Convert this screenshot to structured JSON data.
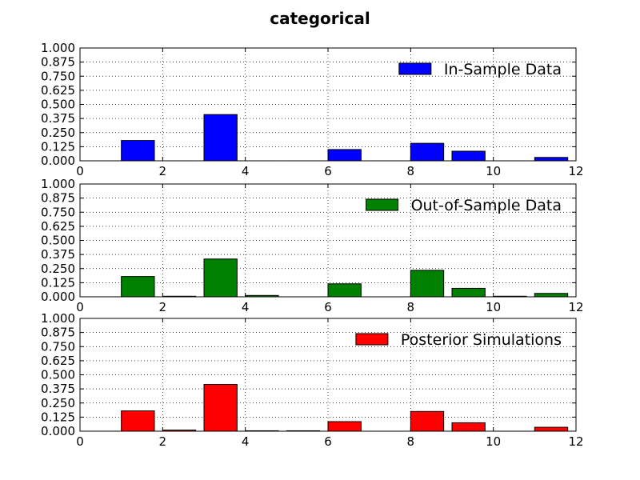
{
  "title": "categorical",
  "chart_data": [
    {
      "type": "bar",
      "series_name": "In-Sample Data",
      "color": "#0000ff",
      "x": [
        1,
        2,
        3,
        4,
        5,
        6,
        7,
        8,
        9,
        10,
        11
      ],
      "values": [
        0.18,
        0.0,
        0.41,
        0.0,
        0.0,
        0.1,
        0.0,
        0.155,
        0.085,
        0.0,
        0.03
      ],
      "xlim": [
        0,
        12
      ],
      "ylim": [
        0,
        1.0
      ],
      "xticks": [
        "0",
        "2",
        "4",
        "6",
        "8",
        "10",
        "12"
      ],
      "yticks": [
        "0.000",
        "0.125",
        "0.250",
        "0.375",
        "0.500",
        "0.625",
        "0.750",
        "0.875",
        "1.000"
      ],
      "grid": true,
      "legend_position": "upper-right"
    },
    {
      "type": "bar",
      "series_name": "Out-of-Sample Data",
      "color": "#008000",
      "x": [
        1,
        2,
        3,
        4,
        5,
        6,
        7,
        8,
        9,
        10,
        11
      ],
      "values": [
        0.18,
        0.005,
        0.335,
        0.012,
        0.0,
        0.115,
        0.0,
        0.235,
        0.075,
        0.005,
        0.03
      ],
      "xlim": [
        0,
        12
      ],
      "ylim": [
        0,
        1.0
      ],
      "xticks": [
        "0",
        "2",
        "4",
        "6",
        "8",
        "10",
        "12"
      ],
      "yticks": [
        "0.000",
        "0.125",
        "0.250",
        "0.375",
        "0.500",
        "0.625",
        "0.750",
        "0.875",
        "1.000"
      ],
      "grid": true,
      "legend_position": "upper-right"
    },
    {
      "type": "bar",
      "series_name": "Posterior Simulations",
      "color": "#ff0000",
      "x": [
        1,
        2,
        3,
        4,
        5,
        6,
        7,
        8,
        9,
        10,
        11
      ],
      "values": [
        0.18,
        0.01,
        0.415,
        0.004,
        0.004,
        0.085,
        0.0,
        0.175,
        0.075,
        0.0,
        0.035
      ],
      "xlim": [
        0,
        12
      ],
      "ylim": [
        0,
        1.0
      ],
      "xticks": [
        "0",
        "2",
        "4",
        "6",
        "8",
        "10",
        "12"
      ],
      "yticks": [
        "0.000",
        "0.125",
        "0.250",
        "0.375",
        "0.500",
        "0.625",
        "0.750",
        "0.875",
        "1.000"
      ],
      "grid": true,
      "legend_position": "upper-right"
    }
  ]
}
